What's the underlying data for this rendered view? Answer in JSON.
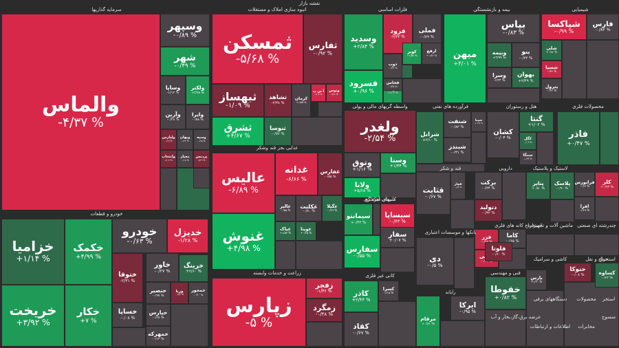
{
  "map_title": "نقشه بازار",
  "colors": {
    "strong_red": "#d8284a",
    "red": "#c42a47",
    "dark_red": "#7a2a3a",
    "neutral": "#4a4348",
    "dark_green": "#2e6b4a",
    "green": "#1f9a57",
    "strong_green": "#12b35e"
  },
  "sectors": [
    {
      "name": "سرمایه گذاریها"
    },
    {
      "name": "انبوه سازی املاک و مستغلات"
    },
    {
      "name": "فلزات اساسی"
    },
    {
      "name": "بیمه و بازنشستگی"
    },
    {
      "name": "شیمیایی"
    },
    {
      "name": "واسطه گریهای مالی و پولی"
    },
    {
      "name": "فرآورده های نفتی"
    },
    {
      "name": "هتل و رستوران"
    },
    {
      "name": "محصولات فلزی"
    },
    {
      "name": "غذایی بجز قند وشکر"
    },
    {
      "name": "قند و شکر"
    },
    {
      "name": "دارویی"
    },
    {
      "name": "لاستیک و پلاستیک"
    },
    {
      "name": "کانیهای غیرفلزی"
    },
    {
      "name": "خودرو و قطعات"
    },
    {
      "name": "سیمان آهک گچ"
    },
    {
      "name": "استخراج کانه های فلزی"
    },
    {
      "name": "ماشین آلات و تجهیزات"
    },
    {
      "name": "چندرشته ای صنعتی"
    },
    {
      "name": "بانکها و موسسات اعتباری"
    },
    {
      "name": "کاشی و سرامیک"
    },
    {
      "name": "حمل و نقل"
    },
    {
      "name": "استخراج"
    },
    {
      "name": "فنی و مهندسی"
    },
    {
      "name": "زراعت و خدمات وابسته"
    },
    {
      "name": "کانی غیر فلزی"
    },
    {
      "name": "رایانه"
    },
    {
      "name": "عرضه برق،گاز،بخار و آب"
    },
    {
      "name": "دستگاههای برقی"
    },
    {
      "name": "محصولات"
    },
    {
      "name": "استخر"
    },
    {
      "name": "اطلاعات و ارتباطات"
    },
    {
      "name": "مخابرات"
    },
    {
      "name": "منسوج"
    }
  ],
  "tiles": [
    {
      "name": "والماس",
      "value": "-۴/۳۷ %"
    },
    {
      "name": "وسپهر",
      "value": "-۰/۸۹ %"
    },
    {
      "name": "شهر",
      "value": "-۰/۴۹ %"
    },
    {
      "name": "ولکتر",
      "value": "+۳/۹۸ %"
    },
    {
      "name": "وساپا",
      "value": "-۱/۱۴ %"
    },
    {
      "name": "وآرین",
      "value": "-۰/۲۸ %"
    },
    {
      "name": "وایرا",
      "value": "-۰/۵۸ %"
    },
    {
      "name": "وبهان",
      "value": "-۰/۲۲ %"
    },
    {
      "name": "وسیه",
      "value": "-۰/۹۵ %"
    },
    {
      "name": "ولپارس",
      "value": "-۰/۹۹ %"
    },
    {
      "name": "وانتخاب",
      "value": "-۲/۰۴ %"
    },
    {
      "name": "معیار",
      "value": "-۰/۱۸ %"
    },
    {
      "name": "پردیس",
      "value": "-۲/۲۹ %"
    },
    {
      "name": "ثمسکن",
      "value": "-۵/۶۸ %"
    },
    {
      "name": "ثفارس",
      "value": "-۰/۹۲ %"
    },
    {
      "name": "ثبهساز",
      "value": "-۱/۰۹ %"
    },
    {
      "name": "ثشاهد",
      "value": "-۲/۳۸ %"
    },
    {
      "name": "کرمان",
      "value": "+۱/۵۵ %"
    },
    {
      "name": "آ س پ",
      "value": "-۲/۰۴ %"
    },
    {
      "name": "وتوس",
      "value": "-۱/۷۱ %"
    },
    {
      "name": "ثشرق",
      "value": "+۴/۶۷ %"
    },
    {
      "name": "ثنوسا",
      "value": "-۰/۷۲ %"
    },
    {
      "name": "فرود",
      "value": "-۲/۳۳ %"
    },
    {
      "name": "فملی",
      "value": "-۰/۸۹ %"
    },
    {
      "name": "ذوب",
      "value": "-۰/۶۳ %"
    },
    {
      "name": "کویر",
      "value": "+۱/۵۷ %"
    },
    {
      "name": "فولاد",
      "value": "+۱/۰۲ %"
    },
    {
      "name": "ارفع",
      "value": "+۰/۸۶ %"
    },
    {
      "name": "وسدید",
      "value": "+۲/۸۴ %"
    },
    {
      "name": "فسرود",
      "value": "+۰/۹۶ %"
    },
    {
      "name": "فخاس",
      "value": "-۰/۴۵ %"
    },
    {
      "name": "میهن",
      "value": "+۴/۰۱ %"
    },
    {
      "name": "بپاس",
      "value": "-۰/۸۳ %"
    },
    {
      "name": "وبیمه",
      "value": "+۲/۹۹ %"
    },
    {
      "name": "بنو",
      "value": "-۰/۲۴ %"
    },
    {
      "name": "بهوان",
      "value": "+۲/۴۹ %"
    },
    {
      "name": "وسرا",
      "value": "-۱/۲۴ %"
    },
    {
      "name": "شپاکسا",
      "value": "-۰/۹۹ %"
    },
    {
      "name": "شلی",
      "value": "+۰/۸۲ %"
    },
    {
      "name": "فارس",
      "value": "-۰/۸۲ %"
    },
    {
      "name": "شسپا",
      "value": "-۰/۳۲ %"
    },
    {
      "name": "پترول",
      "value": "-۰/۴۲ %"
    },
    {
      "name": "ولغدر",
      "value": "-۲/۵۴ %"
    },
    {
      "name": "وتوق",
      "value": "+۱/۱۶ %"
    },
    {
      "name": "ولانا",
      "value": "+۵/۶۸ %"
    },
    {
      "name": "وسنا",
      "value": "+۱/۳۴ %"
    },
    {
      "name": "شبندر",
      "value": "-۰/۳۱ %"
    },
    {
      "name": "شرانل",
      "value": "+۲/۱۰ %"
    },
    {
      "name": "شپنا",
      "value": "+۰/۶۷ %"
    },
    {
      "name": "شنفت",
      "value": "-۰/۸۲ %"
    },
    {
      "name": "کشان",
      "value": "-۰/۰۴ %"
    },
    {
      "name": "گنتا",
      "value": "+۱/۰۲ %"
    },
    {
      "name": "کگل",
      "value": "-۰/۰۴ %"
    },
    {
      "name": "سمگا",
      "value": "-۰/۲۴ %"
    },
    {
      "name": "فاذر",
      "value": "+۰/۴۷ %"
    },
    {
      "name": "عالیس",
      "value": "-۶/۸۹ %"
    },
    {
      "name": "غدانه",
      "value": "-۶/۶۶ %"
    },
    {
      "name": "غفارس",
      "value": "-۰/۵۵ %"
    },
    {
      "name": "غنوش",
      "value": "+۴/۹۸ %"
    },
    {
      "name": "غالبر",
      "value": "-۰/۵۵ %"
    },
    {
      "name": "غکلنت",
      "value": "-۰/۸۰ %"
    },
    {
      "name": "غشکر",
      "value": "-۰/۸۸ %"
    },
    {
      "name": "غگیلا",
      "value": "-۰/۲۹ %"
    },
    {
      "name": "غیاک",
      "value": "+۱/۵۳ %"
    },
    {
      "name": "غویتا",
      "value": "+۰/۲۵ %"
    },
    {
      "name": "قثابت",
      "value": "-۰/۶۷ %"
    },
    {
      "name": "قچار",
      "value": "-۰/۶۸ %"
    },
    {
      "name": "بركت",
      "value": "-۰/۲۴ %"
    },
    {
      "name": "دتولید",
      "value": "-۰/۳۲ %"
    },
    {
      "name": "پتایر",
      "value": "+۰/۵۰ %"
    },
    {
      "name": "پلاسک",
      "value": "-۰/۹۰ %"
    },
    {
      "name": "فرابورس",
      "value": "-۰/۶۳ %"
    },
    {
      "name": "کلر",
      "value": "+۰/۹۳ %"
    },
    {
      "name": "افرا",
      "value": "-۱/۳۹ %"
    },
    {
      "name": "خزامیا",
      "value": "+۱/۱۴ %"
    },
    {
      "name": "خکمک",
      "value": "+۴/۹۹ %"
    },
    {
      "name": "خریخت",
      "value": "+۳/۹۲ %"
    },
    {
      "name": "خکار",
      "value": "+۷ %"
    },
    {
      "name": "خودرو",
      "value": "-۰/۶۳ %"
    },
    {
      "name": "خدیزل",
      "value": "-۱/۲۸ %"
    },
    {
      "name": "ختوقا",
      "value": "-۲/۳۱ %"
    },
    {
      "name": "خاور",
      "value": "-۰/۲۷ %"
    },
    {
      "name": "خرینگ",
      "value": "+۳/۶۰ %"
    },
    {
      "name": "خنصیر",
      "value": "-۰/۹۷ %"
    },
    {
      "name": "ورنا",
      "value": "-۰/۸۳ %"
    },
    {
      "name": "خمحور",
      "value": "-۰/۴۰ %"
    },
    {
      "name": "خپارس",
      "value": "-۰/۲۸ %"
    },
    {
      "name": "خساپا",
      "value": "-۰/۰۸ %"
    },
    {
      "name": "خمهرکه",
      "value": "-۰/۱۳ %"
    },
    {
      "name": "سیمانتو",
      "value": "+۰/۴۲ %"
    },
    {
      "name": "سیساپا",
      "value": "-۰/۴۳ %"
    },
    {
      "name": "سفارس",
      "value": "-۰/۵۵ %"
    },
    {
      "name": "سفار",
      "value": "+۰/۰۷ %"
    },
    {
      "name": "فزر",
      "value": "-۰/۲۹ %"
    },
    {
      "name": "کاما",
      "value": "-۰/۶۵ %"
    },
    {
      "name": "فجلی",
      "value": "-۰/۷۴ %"
    },
    {
      "name": "دی",
      "value": "-۰/۵ %"
    },
    {
      "name": "زپارس",
      "value": "-۵ %"
    },
    {
      "name": "زفجر",
      "value": "-۱/۳۶ %"
    },
    {
      "name": "زمگرد",
      "value": "-۰/۴۸ %"
    },
    {
      "name": "کاذر",
      "value": "+۲/۴۴ %"
    },
    {
      "name": "کسرا",
      "value": "-۱/۱۵ %"
    },
    {
      "name": "کقاد",
      "value": "-۰/۶۷ %"
    },
    {
      "name": "مرقام",
      "value": "+۰/۸۱ %"
    },
    {
      "name": "ایرکا",
      "value": "-۰/۹۵ %"
    },
    {
      "name": "خقوطا",
      "value": "+۰/۸۲ %"
    },
    {
      "name": "فلوتا",
      "value": "-۰/۶۰ %"
    },
    {
      "name": "بارس",
      "value": "+۱/۹۰ %"
    },
    {
      "name": "کساوه",
      "value": "-۰/۶۲ %"
    },
    {
      "name": "حتوکا",
      "value": "-۰/۰۸ %"
    }
  ]
}
